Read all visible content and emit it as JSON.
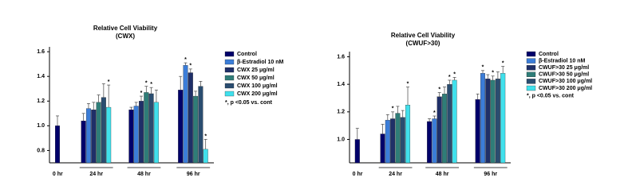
{
  "chart_data": [
    {
      "type": "bar",
      "title": "Relative Cell Viability",
      "subtitle": "(CWX)",
      "categories": [
        "0 hr",
        "24 hr",
        "48 hr",
        "96 hr"
      ],
      "series": [
        {
          "name": "Control",
          "color": "#00006a",
          "values": [
            1.0,
            1.04,
            1.13,
            1.29
          ],
          "errors": [
            0.08,
            0.06,
            0.02,
            0.11
          ],
          "markers": [
            null,
            null,
            null,
            null
          ]
        },
        {
          "name": "β-Estradiol 10 nM",
          "color": "#3b7dd8",
          "values": [
            null,
            1.14,
            1.16,
            1.49
          ],
          "errors": [
            null,
            0.04,
            0.03,
            0.02
          ],
          "markers": [
            null,
            null,
            null,
            "*"
          ]
        },
        {
          "name": "CWX 25 μg/ml",
          "color": "#1f2f68",
          "values": [
            null,
            1.13,
            1.2,
            1.43
          ],
          "errors": [
            null,
            0.06,
            0.04,
            0.03
          ],
          "markers": [
            null,
            null,
            "*",
            "*"
          ]
        },
        {
          "name": "CWX 50 μg/ml",
          "color": "#2f7d78",
          "values": [
            null,
            1.19,
            1.27,
            1.24
          ],
          "errors": [
            null,
            0.06,
            0.05,
            0.04
          ],
          "markers": [
            null,
            null,
            "*",
            null
          ]
        },
        {
          "name": "CWX 100 μg/ml",
          "color": "#2a4d70",
          "values": [
            null,
            1.23,
            1.26,
            1.32
          ],
          "errors": [
            null,
            0.11,
            0.05,
            0.04
          ],
          "markers": [
            null,
            null,
            "*",
            null
          ]
        },
        {
          "name": "CWX 200 μg/ml",
          "color": "#40e0ec",
          "values": [
            null,
            1.15,
            1.19,
            0.81
          ],
          "errors": [
            null,
            0.18,
            0.1,
            0.08
          ],
          "markers": [
            null,
            "*",
            null,
            "*"
          ]
        }
      ],
      "note": "*, p <0.05 vs. cont",
      "ylim": [
        0.7,
        1.62
      ],
      "yticks": [
        0.8,
        {
          "value": 1,
          "label": "1.0"
        },
        1.2,
        1.4,
        1.6
      ]
    },
    {
      "type": "bar",
      "title": "Relative Cell Viability",
      "subtitle": "(CWUF>30)",
      "categories": [
        "0 hr",
        "24 hr",
        "48 hr",
        "96 hr"
      ],
      "series": [
        {
          "name": "Control",
          "color": "#00006a",
          "values": [
            1.0,
            1.04,
            1.13,
            1.29
          ],
          "errors": [
            0.08,
            0.07,
            0.02,
            0.04
          ],
          "markers": [
            null,
            null,
            null,
            null
          ]
        },
        {
          "name": "β-Estradiol 10 nM",
          "color": "#3b7dd8",
          "values": [
            null,
            1.14,
            1.15,
            1.48
          ],
          "errors": [
            null,
            0.04,
            0.02,
            0.02
          ],
          "markers": [
            null,
            null,
            "*",
            "*"
          ]
        },
        {
          "name": "CWUF>30 25 μg/ml",
          "color": "#1f2f68",
          "values": [
            null,
            1.15,
            1.31,
            1.44
          ],
          "errors": [
            null,
            0.05,
            0.03,
            0.03
          ],
          "markers": [
            null,
            "*",
            "*",
            null
          ]
        },
        {
          "name": "CWUF>30 50 μg/ml",
          "color": "#2f7d78",
          "values": [
            null,
            1.19,
            1.33,
            1.43
          ],
          "errors": [
            null,
            0.05,
            0.05,
            0.03
          ],
          "markers": [
            null,
            null,
            null,
            "*"
          ]
        },
        {
          "name": "CWUF>30 100 μg/ml",
          "color": "#2a4d70",
          "values": [
            null,
            1.16,
            1.4,
            1.44
          ],
          "errors": [
            null,
            0.05,
            0.03,
            0.05
          ],
          "markers": [
            null,
            null,
            "*",
            null
          ]
        },
        {
          "name": "CWUF>30 200 μg/ml",
          "color": "#40e0ec",
          "values": [
            null,
            1.25,
            1.43,
            1.48
          ],
          "errors": [
            null,
            0.13,
            0.02,
            0.05
          ],
          "markers": [
            null,
            "*",
            "*",
            "*"
          ]
        }
      ],
      "note": "*, p <0.05 vs. cont",
      "ylim": [
        0.83,
        1.62
      ],
      "yticks": [
        {
          "value": 1,
          "label": "1.0"
        },
        1.2,
        1.4,
        1.6
      ]
    }
  ]
}
